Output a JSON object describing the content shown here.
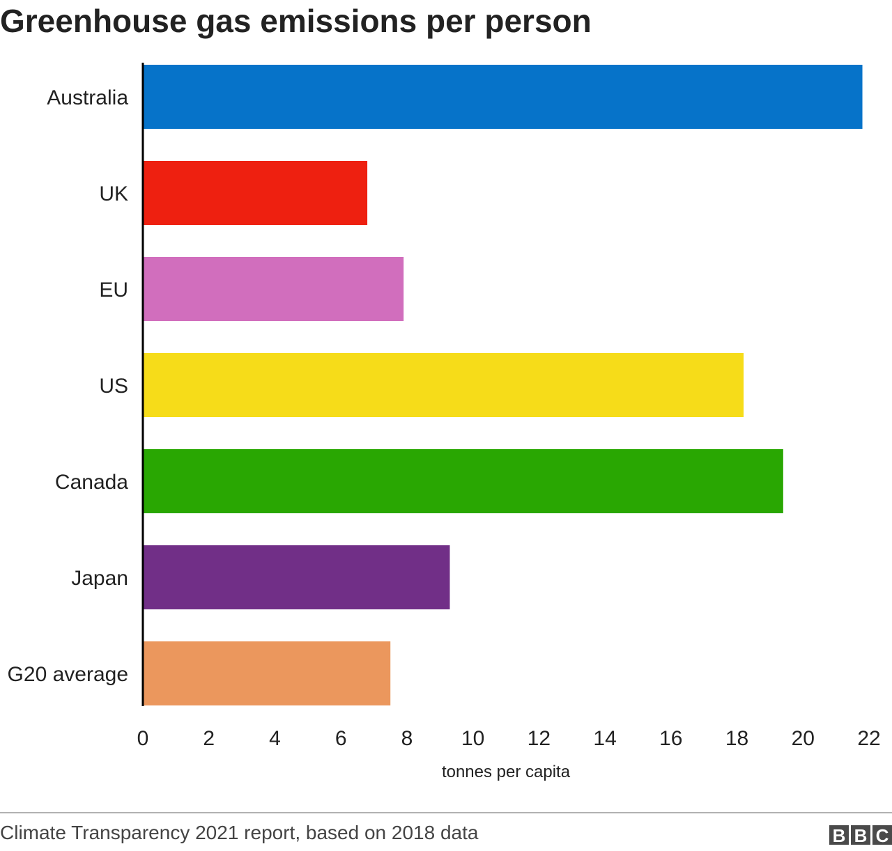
{
  "chart_data": {
    "type": "bar",
    "orientation": "horizontal",
    "title": "Greenhouse gas emissions per person",
    "xlabel": "tonnes per capita",
    "ylabel": "",
    "xlim": [
      0,
      22
    ],
    "xticks": [
      "0",
      "2",
      "4",
      "6",
      "8",
      "10",
      "12",
      "14",
      "16",
      "18",
      "20",
      "22"
    ],
    "grid": false,
    "categories": [
      "Australia",
      "UK",
      "EU",
      "US",
      "Canada",
      "Japan",
      "G20 average"
    ],
    "values": [
      21.8,
      6.8,
      7.9,
      18.2,
      19.4,
      9.3,
      7.5
    ],
    "colors": [
      "#0673c9",
      "#ee2010",
      "#d16ebd",
      "#f6dc19",
      "#29a702",
      "#712f87",
      "#eb975d"
    ]
  },
  "footer": {
    "source": "Climate Transparency 2021 report, based on 2018 data",
    "logo_letters": [
      "B",
      "B",
      "C"
    ]
  }
}
